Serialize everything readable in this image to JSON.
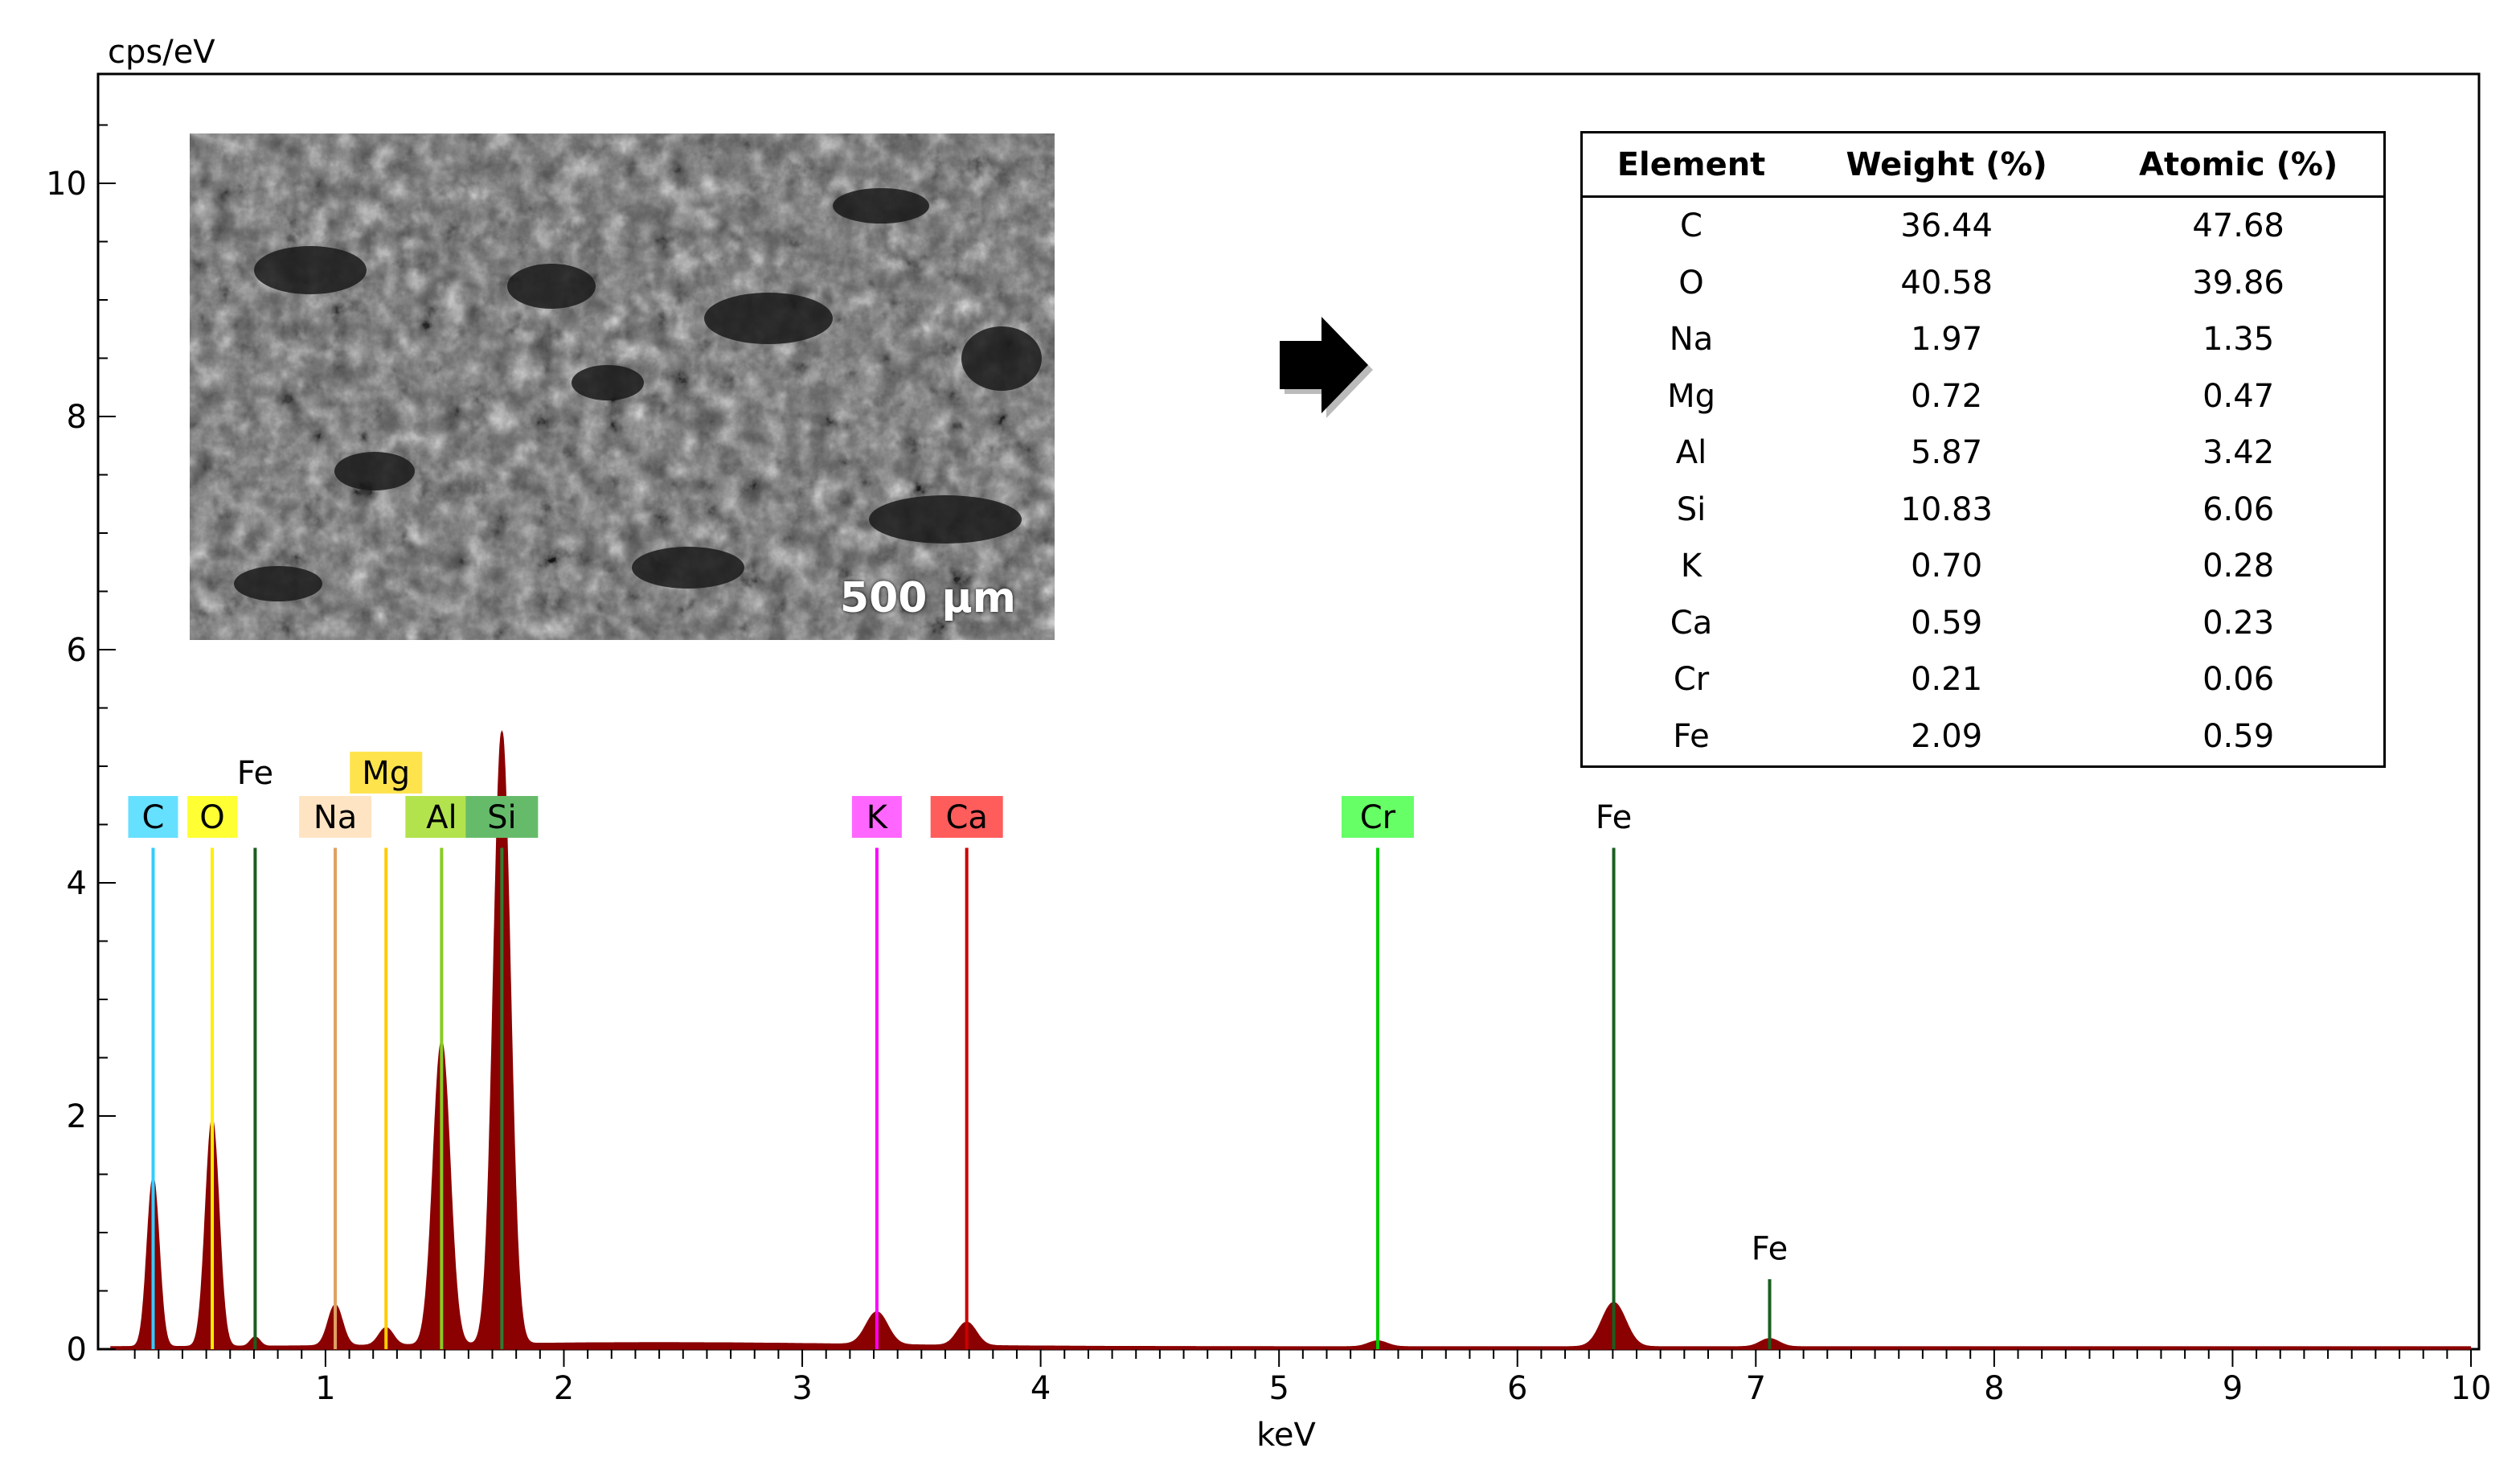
{
  "chart_data": {
    "type": "bar",
    "title": "",
    "xlabel": "keV",
    "ylabel": "cps/eV",
    "xlim": [
      0.1,
      10
    ],
    "ylim": [
      0,
      11
    ],
    "xticks": [
      1,
      2,
      3,
      4,
      5,
      6,
      7,
      8,
      9,
      10
    ],
    "yticks": [
      0,
      2,
      4,
      6,
      8,
      10
    ],
    "grid": false,
    "colors": {
      "spectrum": "#8b0000",
      "axis": "#000000"
    },
    "peaks": [
      {
        "center": 0.277,
        "height": 1.45,
        "width": 0.025
      },
      {
        "center": 0.525,
        "height": 1.95,
        "width": 0.028
      },
      {
        "center": 0.705,
        "height": 0.08,
        "width": 0.02
      },
      {
        "center": 1.041,
        "height": 0.35,
        "width": 0.03
      },
      {
        "center": 1.254,
        "height": 0.15,
        "width": 0.03
      },
      {
        "center": 1.487,
        "height": 2.6,
        "width": 0.035
      },
      {
        "center": 1.74,
        "height": 5.25,
        "width": 0.035
      },
      {
        "center": 3.313,
        "height": 0.28,
        "width": 0.045
      },
      {
        "center": 3.69,
        "height": 0.2,
        "width": 0.04
      },
      {
        "center": 5.414,
        "height": 0.05,
        "width": 0.04
      },
      {
        "center": 6.404,
        "height": 0.38,
        "width": 0.05
      },
      {
        "center": 7.058,
        "height": 0.07,
        "width": 0.04
      }
    ],
    "markers": [
      {
        "label": "C",
        "x": 0.277,
        "top": 4.3,
        "line_color": "#33ccff",
        "label_bg": "#66e0ff",
        "label_y": 4.4,
        "has_bg": true
      },
      {
        "label": "O",
        "x": 0.525,
        "top": 4.3,
        "line_color": "#ffee00",
        "label_bg": "#ffff33",
        "label_y": 4.4,
        "has_bg": true
      },
      {
        "label": "Fe",
        "x": 0.705,
        "top": 4.3,
        "line_color": "#1b5e20",
        "label_bg": "",
        "label_y": 4.78,
        "has_bg": false
      },
      {
        "label": "Na",
        "x": 1.041,
        "top": 4.3,
        "line_color": "#e0a060",
        "label_bg": "#ffe4c4",
        "label_y": 4.4,
        "has_bg": true
      },
      {
        "label": "Mg",
        "x": 1.254,
        "top": 4.3,
        "line_color": "#ffcc00",
        "label_bg": "#ffe34d",
        "label_y": 4.78,
        "has_bg": true
      },
      {
        "label": "Al",
        "x": 1.487,
        "top": 4.3,
        "line_color": "#88cc22",
        "label_bg": "#b2e34d",
        "label_y": 4.4,
        "has_bg": true
      },
      {
        "label": "Si",
        "x": 1.74,
        "top": 4.3,
        "line_color": "#2e7d32",
        "label_bg": "#66bb6a",
        "label_y": 4.4,
        "has_bg": true
      },
      {
        "label": "K",
        "x": 3.313,
        "top": 4.3,
        "line_color": "#ff00ff",
        "label_bg": "#ff66ff",
        "label_y": 4.4,
        "has_bg": true
      },
      {
        "label": "Ca",
        "x": 3.69,
        "top": 4.3,
        "line_color": "#cc0000",
        "label_bg": "#ff5c5c",
        "label_y": 4.4,
        "has_bg": true
      },
      {
        "label": "Cr",
        "x": 5.414,
        "top": 4.3,
        "line_color": "#00cc00",
        "label_bg": "#66ff66",
        "label_y": 4.4,
        "has_bg": true
      },
      {
        "label": "Fe",
        "x": 6.404,
        "top": 4.3,
        "line_color": "#1b5e20",
        "label_bg": "",
        "label_y": 4.4,
        "has_bg": false
      },
      {
        "label": "Fe",
        "x": 7.058,
        "top": 0.6,
        "line_color": "#1b5e20",
        "label_bg": "",
        "label_y": 0.7,
        "has_bg": false
      }
    ]
  },
  "sem_image": {
    "scale_bar_label": "500 µm"
  },
  "composition_table": {
    "headers": [
      "Element",
      "Weight (%)",
      "Atomic (%)"
    ],
    "rows": [
      [
        "C",
        "36.44",
        "47.68"
      ],
      [
        "O",
        "40.58",
        "39.86"
      ],
      [
        "Na",
        "1.97",
        "1.35"
      ],
      [
        "Mg",
        "0.72",
        "0.47"
      ],
      [
        "Al",
        "5.87",
        "3.42"
      ],
      [
        "Si",
        "10.83",
        "6.06"
      ],
      [
        "K",
        "0.70",
        "0.28"
      ],
      [
        "Ca",
        "0.59",
        "0.23"
      ],
      [
        "Cr",
        "0.21",
        "0.06"
      ],
      [
        "Fe",
        "2.09",
        "0.59"
      ]
    ]
  }
}
